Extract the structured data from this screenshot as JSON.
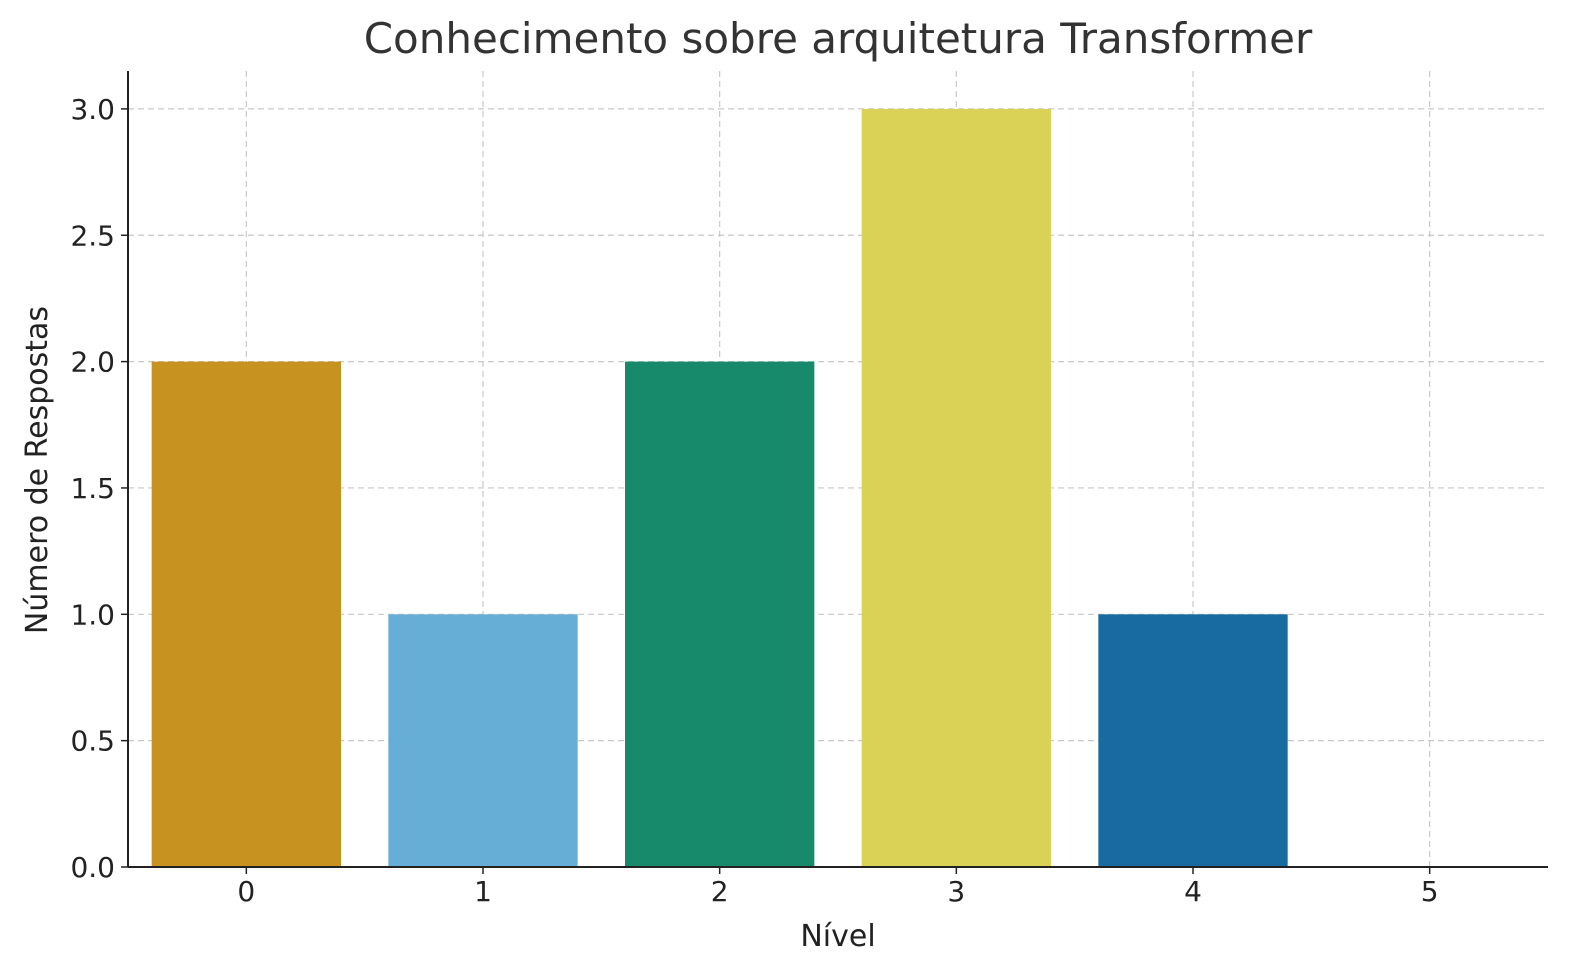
{
  "chart_data": {
    "type": "bar",
    "title": "Conhecimento sobre arquitetura Transformer",
    "xlabel": "Nível",
    "ylabel": "Número de Respostas",
    "categories": [
      "0",
      "1",
      "2",
      "3",
      "4",
      "5"
    ],
    "values": [
      2,
      1,
      2,
      3,
      1,
      0
    ],
    "colors": [
      "#c79220",
      "#67aed7",
      "#168a6b",
      "#d9d257",
      "#186ba0",
      "#cc79a7"
    ],
    "ylim": [
      0,
      3.15
    ],
    "yticks": [
      "0.0",
      "0.5",
      "1.0",
      "1.5",
      "2.0",
      "2.5",
      "3.0"
    ],
    "grid": true,
    "legend": "none"
  }
}
